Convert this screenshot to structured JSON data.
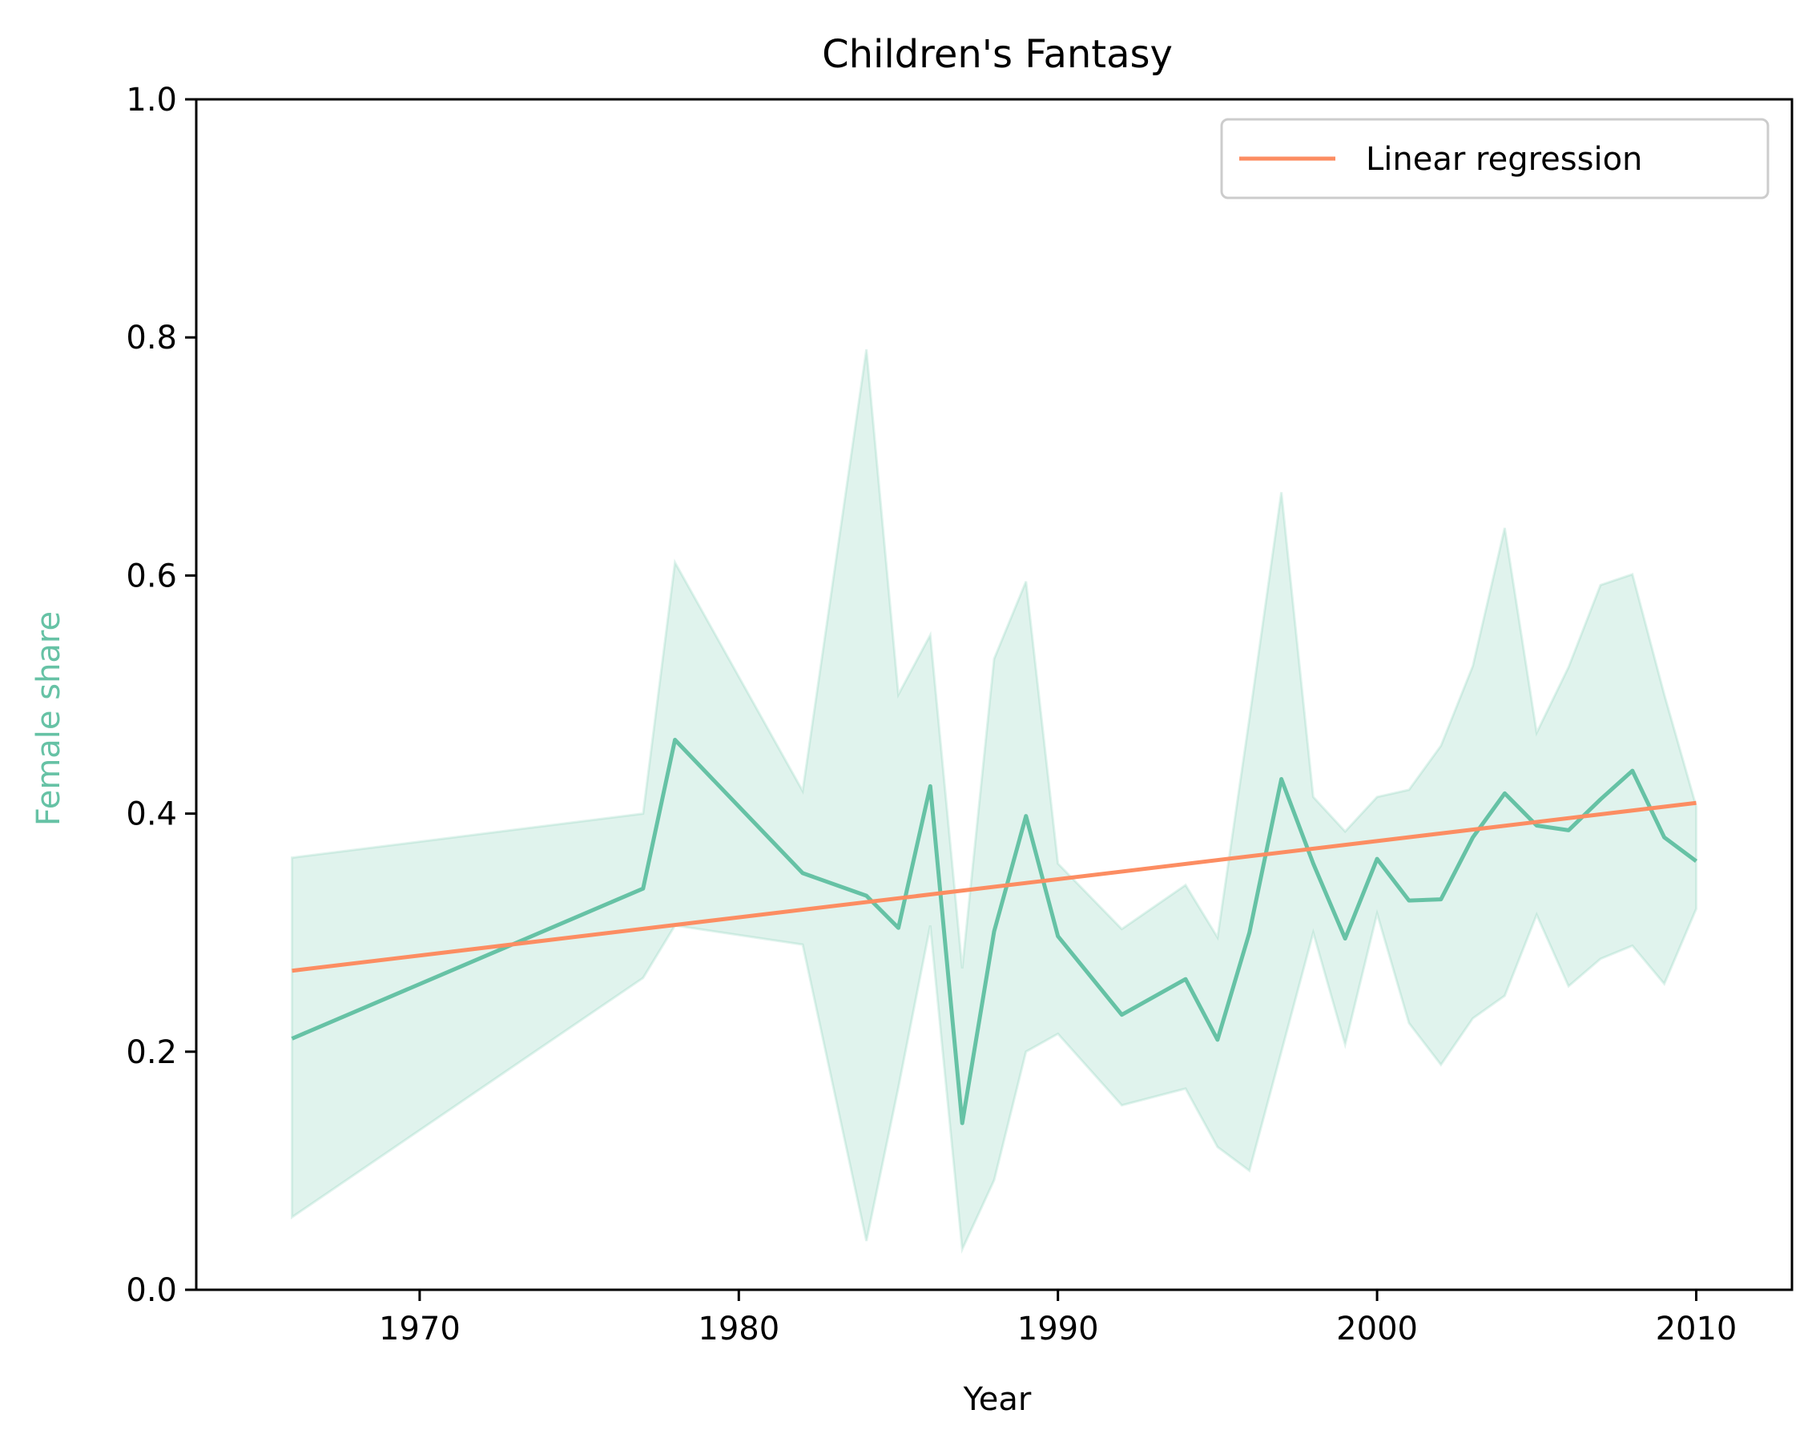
{
  "chart_data": {
    "type": "line",
    "title": "Children's Fantasy",
    "xlabel": "Year",
    "ylabel": "Female share",
    "xlim": [
      1963,
      2013
    ],
    "ylim": [
      0.0,
      1.0
    ],
    "x_ticks": [
      1970,
      1980,
      1990,
      2000,
      2010
    ],
    "x_tick_labels": [
      "1970",
      "1980",
      "1990",
      "2000",
      "2010"
    ],
    "y_ticks": [
      0.0,
      0.2,
      0.4,
      0.6,
      0.8,
      1.0
    ],
    "y_tick_labels": [
      "0.0",
      "0.2",
      "0.4",
      "0.6",
      "0.8",
      "1.0"
    ],
    "grid": false,
    "legend_position": "top-right",
    "colors": {
      "series": "#66c2a5",
      "band": "#66c2a5",
      "regression": "#fc8d62",
      "ylabel": "#66c2a5"
    },
    "series": [
      {
        "x": [
          1966,
          1977,
          1978,
          1982,
          1984,
          1985,
          1986,
          1987,
          1988,
          1989,
          1990,
          1992,
          1994,
          1995,
          1996,
          1997,
          1998,
          1999,
          2000,
          2001,
          2002,
          2003,
          2004,
          2005,
          2006,
          2007,
          2008,
          2009,
          2010
        ],
        "y": [
          0.211,
          0.337,
          0.462,
          0.35,
          0.331,
          0.304,
          0.423,
          0.14,
          0.301,
          0.398,
          0.297,
          0.231,
          0.261,
          0.21,
          0.3,
          0.429,
          0.358,
          0.295,
          0.362,
          0.327,
          0.328,
          0.38,
          0.417,
          0.39,
          0.386,
          0.412,
          0.436,
          0.38,
          0.36
        ],
        "lower": [
          0.061,
          0.262,
          0.306,
          0.29,
          0.041,
          0.17,
          0.306,
          0.034,
          0.092,
          0.2,
          0.215,
          0.155,
          0.169,
          0.12,
          0.1,
          0.2,
          0.3,
          0.206,
          0.316,
          0.224,
          0.189,
          0.228,
          0.247,
          0.315,
          0.255,
          0.278,
          0.289,
          0.257,
          0.32
        ],
        "upper": [
          0.363,
          0.4,
          0.611,
          0.419,
          0.79,
          0.5,
          0.55,
          0.27,
          0.53,
          0.595,
          0.358,
          0.303,
          0.34,
          0.296,
          0.48,
          0.67,
          0.414,
          0.385,
          0.414,
          0.42,
          0.457,
          0.524,
          0.64,
          0.468,
          0.523,
          0.592,
          0.601,
          0.5,
          0.406
        ]
      },
      {
        "name": "Linear regression",
        "x": [
          1966,
          2010
        ],
        "y": [
          0.268,
          0.409
        ]
      }
    ]
  }
}
